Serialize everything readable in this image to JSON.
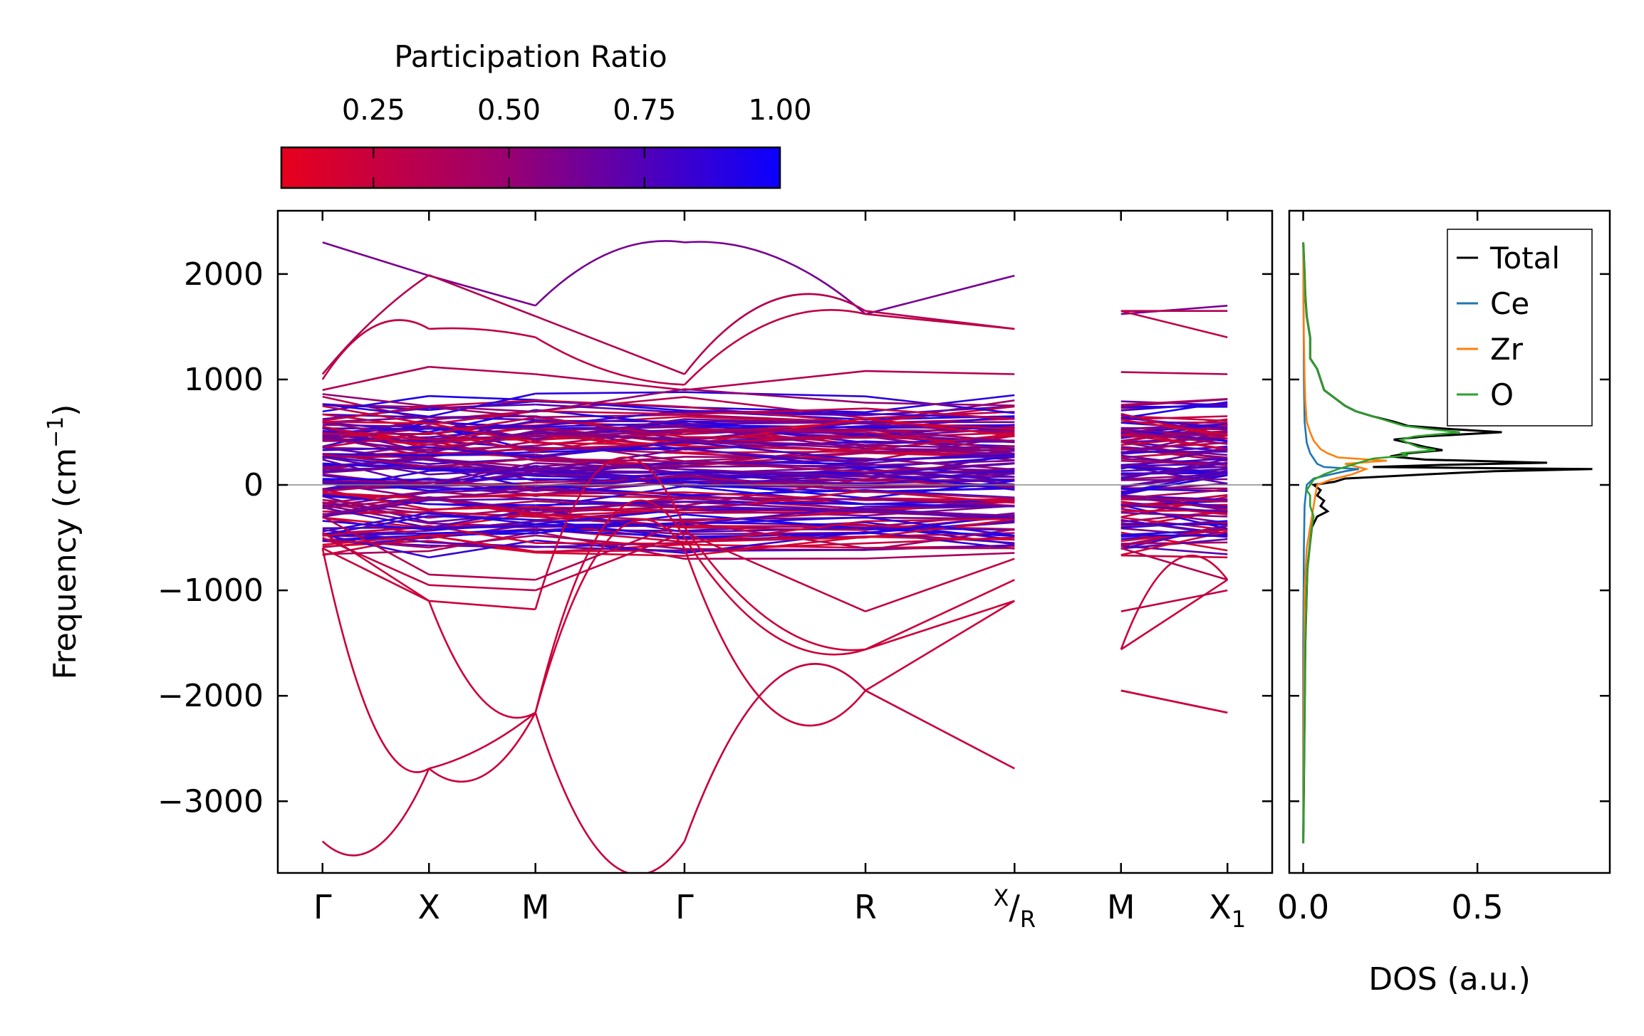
{
  "colorbar": {
    "title": "Participation Ratio",
    "ticks": [
      0.25,
      0.5,
      0.75,
      1.0
    ],
    "tick_labels": [
      "0.25",
      "0.50",
      "0.75",
      "1.00"
    ],
    "range": [
      0.08,
      1.0
    ],
    "color_low": "#e8001c",
    "color_high": "#0a00ff"
  },
  "chart_data": [
    {
      "type": "line",
      "title": "",
      "ylabel": "Frequency (cm⁻¹)",
      "ylabel_text": "Frequency (cm",
      "ylabel_sup": "−1",
      "ylabel_close": ")",
      "ylim": [
        -3680,
        2600
      ],
      "yticks": [
        -3000,
        -2000,
        -1000,
        0,
        1000,
        2000
      ],
      "ytick_labels": [
        "−3000",
        "−2000",
        "−1000",
        "0",
        "1000",
        "2000"
      ],
      "path_positions": [
        0,
        1,
        2,
        3.4,
        5.1,
        6.5,
        7.5,
        8.5
      ],
      "xlim": [
        -0.42,
        8.92
      ],
      "segments": [
        [
          0,
          6.5
        ],
        [
          6.5,
          8.5
        ]
      ],
      "high_symmetry_labels": [
        "Γ",
        "X",
        "M",
        "Γ",
        "R",
        "X/R",
        "M",
        "X₁"
      ],
      "label_parts": [
        {
          "main": "Γ"
        },
        {
          "main": "X"
        },
        {
          "main": "M"
        },
        {
          "main": "Γ"
        },
        {
          "main": "R"
        },
        {
          "sup": "X",
          "main": "/",
          "sub": "R"
        },
        {
          "main": "M"
        },
        {
          "main": "X",
          "sub": "1"
        }
      ],
      "key_frequencies": {
        "highest_mode_gamma": 2300,
        "lowest_mode_gamma": -3380,
        "X_point_lowest": -2690,
        "M_point_crossing": -2160,
        "R_point_lower": -1950,
        "R_point_upper": -1560
      },
      "band_color_metric": "Participation Ratio",
      "zero_line": 0
    },
    {
      "type": "line",
      "xlabel": "DOS (a.u.)",
      "xlim": [
        -0.04,
        0.88
      ],
      "xticks": [
        0.0,
        0.5
      ],
      "xtick_labels": [
        "0.0",
        "0.5"
      ],
      "ylim": [
        -3680,
        2600
      ],
      "legend": [
        "Total",
        "Ce",
        "Zr",
        "O"
      ],
      "legend_position": "top-right",
      "series": [
        {
          "name": "Total",
          "color": "#000000",
          "frequency": [
            -3400,
            -2500,
            -1500,
            -1000,
            -800,
            -600,
            -400,
            -300,
            -250,
            -200,
            -150,
            -100,
            -50,
            0,
            30,
            60,
            100,
            130,
            150,
            170,
            190,
            210,
            240,
            270,
            300,
            330,
            360,
            400,
            430,
            460,
            500,
            530,
            560,
            600,
            650,
            700,
            750,
            800,
            900,
            1000,
            1100,
            1200,
            1400,
            1600,
            1800,
            2000,
            2300
          ],
          "values": [
            0.0,
            0.003,
            0.006,
            0.01,
            0.012,
            0.018,
            0.025,
            0.04,
            0.07,
            0.05,
            0.06,
            0.04,
            0.05,
            0.03,
            0.09,
            0.12,
            0.35,
            0.55,
            0.83,
            0.2,
            0.4,
            0.7,
            0.35,
            0.25,
            0.3,
            0.4,
            0.35,
            0.3,
            0.26,
            0.35,
            0.57,
            0.42,
            0.3,
            0.26,
            0.2,
            0.15,
            0.12,
            0.1,
            0.06,
            0.05,
            0.04,
            0.02,
            0.02,
            0.01,
            0.006,
            0.004,
            0.0
          ]
        },
        {
          "name": "Ce",
          "color": "#1f77b4",
          "frequency": [
            -3400,
            -1500,
            -600,
            -200,
            0,
            60,
            100,
            130,
            150,
            170,
            200,
            250,
            300,
            400,
            600,
            1000,
            2300
          ],
          "values": [
            0.0,
            0.0,
            0.002,
            0.004,
            0.01,
            0.03,
            0.08,
            0.12,
            0.16,
            0.06,
            0.04,
            0.03,
            0.02,
            0.01,
            0.004,
            0.002,
            0.0
          ]
        },
        {
          "name": "Zr",
          "color": "#ff7f0e",
          "frequency": [
            -3400,
            -2000,
            -1000,
            -600,
            -400,
            -200,
            0,
            50,
            100,
            150,
            200,
            230,
            260,
            300,
            340,
            380,
            420,
            500,
            600,
            800,
            1000,
            1400,
            2300
          ],
          "values": [
            0.0,
            0.002,
            0.004,
            0.01,
            0.02,
            0.03,
            0.04,
            0.08,
            0.14,
            0.18,
            0.12,
            0.24,
            0.1,
            0.07,
            0.05,
            0.04,
            0.03,
            0.02,
            0.01,
            0.006,
            0.004,
            0.002,
            0.0
          ]
        },
        {
          "name": "O",
          "color": "#2ca02c",
          "frequency": [
            -3400,
            -2500,
            -1500,
            -1000,
            -800,
            -600,
            -400,
            -300,
            -200,
            -100,
            -50,
            0,
            50,
            100,
            150,
            200,
            250,
            280,
            300,
            330,
            360,
            400,
            430,
            460,
            500,
            530,
            560,
            600,
            650,
            700,
            750,
            800,
            900,
            1000,
            1100,
            1200,
            1400,
            1600,
            1800,
            2000,
            2300
          ],
          "values": [
            0.0,
            0.003,
            0.006,
            0.01,
            0.012,
            0.018,
            0.025,
            0.03,
            0.02,
            0.02,
            0.01,
            0.02,
            0.03,
            0.06,
            0.1,
            0.15,
            0.2,
            0.3,
            0.28,
            0.38,
            0.33,
            0.3,
            0.28,
            0.32,
            0.45,
            0.36,
            0.29,
            0.25,
            0.2,
            0.15,
            0.12,
            0.1,
            0.06,
            0.05,
            0.04,
            0.02,
            0.02,
            0.01,
            0.006,
            0.004,
            0.0
          ]
        }
      ]
    }
  ]
}
